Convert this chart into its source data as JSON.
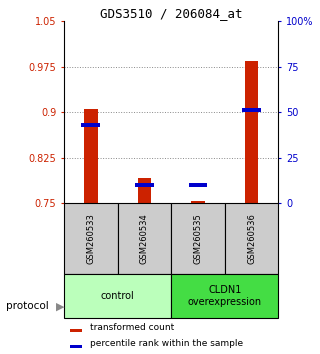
{
  "title": "GDS3510 / 206084_at",
  "samples": [
    "GSM260533",
    "GSM260534",
    "GSM260535",
    "GSM260536"
  ],
  "groups": [
    {
      "name": "control",
      "color": "#bbffbb",
      "span": [
        0,
        1
      ]
    },
    {
      "name": "CLDN1\noverexpression",
      "color": "#44dd44",
      "span": [
        2,
        3
      ]
    }
  ],
  "red_values": [
    0.905,
    0.792,
    0.754,
    0.984
  ],
  "blue_values_pct": [
    43,
    10,
    10,
    51
  ],
  "ylim_left": [
    0.75,
    1.05
  ],
  "yticks_left": [
    0.75,
    0.825,
    0.9,
    0.975,
    1.05
  ],
  "ylim_right": [
    0,
    100
  ],
  "yticks_right": [
    0,
    25,
    50,
    75,
    100
  ],
  "ytick_labels_right": [
    "0",
    "25",
    "50",
    "75",
    "100%"
  ],
  "red_color": "#cc2200",
  "blue_color": "#0000cc",
  "bar_width": 0.25,
  "grid_color": "#888888",
  "sample_box_color": "#cccccc",
  "protocol_label": "protocol",
  "legend_red": "transformed count",
  "legend_blue": "percentile rank within the sample"
}
